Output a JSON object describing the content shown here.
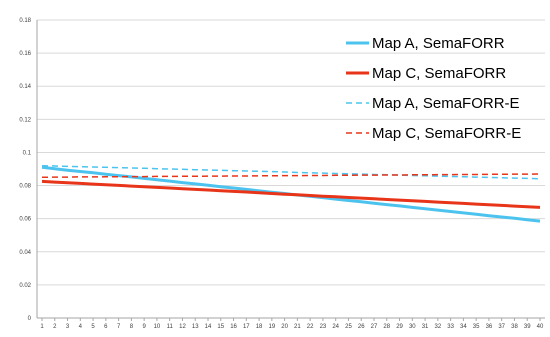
{
  "chart_data": {
    "type": "line",
    "title": "",
    "xlabel": "",
    "ylabel": "",
    "x": [
      1,
      2,
      3,
      4,
      5,
      6,
      7,
      8,
      9,
      10,
      11,
      12,
      13,
      14,
      15,
      16,
      17,
      18,
      19,
      20,
      21,
      22,
      23,
      24,
      25,
      26,
      27,
      28,
      29,
      30,
      31,
      32,
      33,
      34,
      35,
      36,
      37,
      38,
      39,
      40
    ],
    "x_tick_labels": [
      "1",
      "2",
      "3",
      "4",
      "5",
      "6",
      "7",
      "8",
      "9",
      "10",
      "11",
      "12",
      "13",
      "14",
      "15",
      "16",
      "17",
      "18",
      "19",
      "20",
      "21",
      "22",
      "23",
      "24",
      "25",
      "26",
      "27",
      "28",
      "29",
      "30",
      "31",
      "32",
      "33",
      "34",
      "35",
      "36",
      "37",
      "38",
      "39",
      "40"
    ],
    "ylim": [
      0,
      0.18
    ],
    "y_ticks": [
      0,
      0.02,
      0.04,
      0.06,
      0.08,
      0.1,
      0.12,
      0.14,
      0.16,
      0.18
    ],
    "y_tick_labels": [
      "0",
      "0.02",
      "0.04",
      "0.06",
      "0.08",
      "0.1",
      "0.12",
      "0.14",
      "0.16",
      "0.18"
    ],
    "grid": "horizontal",
    "legend_placement": "top-right",
    "series": [
      {
        "name": "Map A, SemaFORR",
        "color": "#4CC3EE",
        "style": "solid",
        "values": [
          0.091,
          0.0902,
          0.0893,
          0.0885,
          0.0877,
          0.0868,
          0.086,
          0.0852,
          0.0843,
          0.0835,
          0.0827,
          0.0818,
          0.081,
          0.0802,
          0.0793,
          0.0785,
          0.0777,
          0.0768,
          0.076,
          0.0752,
          0.0743,
          0.0735,
          0.0727,
          0.0718,
          0.071,
          0.0702,
          0.0693,
          0.0685,
          0.0677,
          0.0668,
          0.066,
          0.0652,
          0.0643,
          0.0635,
          0.0627,
          0.0618,
          0.061,
          0.0602,
          0.0593,
          0.0585
        ]
      },
      {
        "name": "Map C, SemaFORR",
        "color": "#E8351A",
        "style": "solid",
        "values": [
          0.0825,
          0.0821,
          0.0817,
          0.0813,
          0.0809,
          0.0805,
          0.0801,
          0.0797,
          0.0793,
          0.0789,
          0.0785,
          0.0781,
          0.0777,
          0.0773,
          0.0769,
          0.0765,
          0.0761,
          0.0756,
          0.0752,
          0.0748,
          0.0744,
          0.074,
          0.0736,
          0.0732,
          0.0728,
          0.0724,
          0.072,
          0.0716,
          0.0712,
          0.0708,
          0.0704,
          0.07,
          0.0696,
          0.0692,
          0.0688,
          0.0684,
          0.068,
          0.0676,
          0.0672,
          0.0668
        ]
      },
      {
        "name": "Map A, SemaFORR-E",
        "color": "#4CC3EE",
        "style": "dashed",
        "values": [
          0.092,
          0.0918,
          0.0916,
          0.0914,
          0.0912,
          0.091,
          0.0908,
          0.0906,
          0.0904,
          0.0902,
          0.09,
          0.0898,
          0.0896,
          0.0894,
          0.0892,
          0.089,
          0.0888,
          0.0886,
          0.0884,
          0.0882,
          0.0879,
          0.0877,
          0.0875,
          0.0873,
          0.0871,
          0.0869,
          0.0867,
          0.0865,
          0.0863,
          0.0861,
          0.0859,
          0.0857,
          0.0855,
          0.0853,
          0.0851,
          0.0849,
          0.0847,
          0.0845,
          0.0843,
          0.0841
        ]
      },
      {
        "name": "Map C, SemaFORR-E",
        "color": "#E8351A",
        "style": "dashed",
        "values": [
          0.085,
          0.0851,
          0.0851,
          0.0852,
          0.0852,
          0.0853,
          0.0853,
          0.0854,
          0.0854,
          0.0855,
          0.0855,
          0.0856,
          0.0856,
          0.0857,
          0.0857,
          0.0858,
          0.0858,
          0.0859,
          0.0859,
          0.086,
          0.086,
          0.0861,
          0.0861,
          0.0862,
          0.0862,
          0.0863,
          0.0863,
          0.0864,
          0.0864,
          0.0865,
          0.0865,
          0.0866,
          0.0866,
          0.0867,
          0.0867,
          0.0868,
          0.0868,
          0.0869,
          0.0869,
          0.087
        ]
      }
    ]
  }
}
